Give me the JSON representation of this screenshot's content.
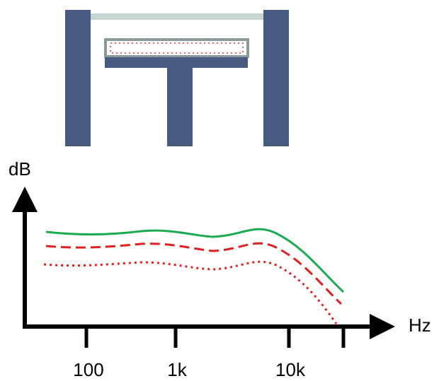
{
  "axes": {
    "y_label": "dB",
    "x_label": "Hz",
    "x_ticks": [
      "100",
      "1k",
      "10k"
    ]
  }
}
